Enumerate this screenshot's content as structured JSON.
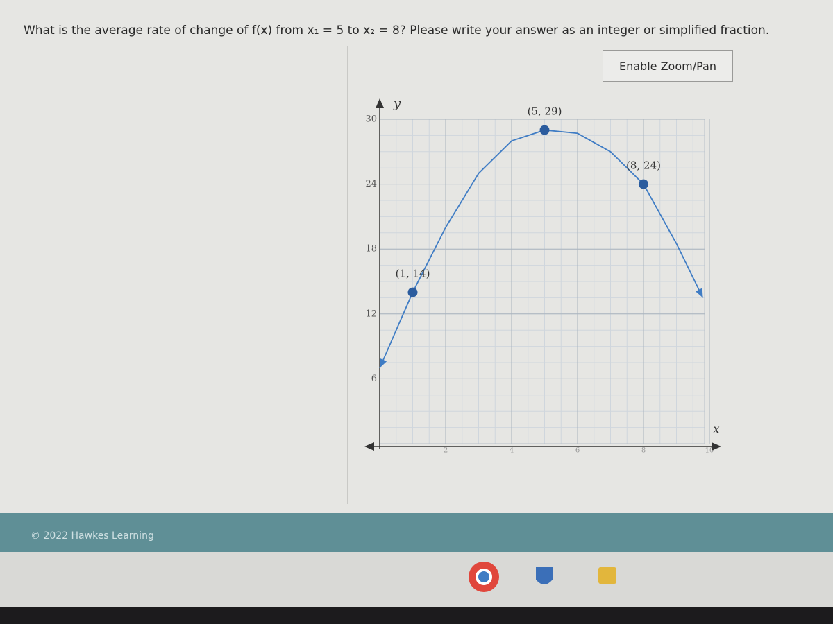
{
  "question": "What is the average rate of change of f(x) from x₁ = 5 to x₂ = 8? Please write your answer as an integer or simplified fraction.",
  "button": "Enable Zoom/Pan",
  "footer": "© 2022 Hawkes Learning",
  "chart_data": {
    "type": "line",
    "x_label": "x",
    "y_label": "y",
    "xlim": [
      0,
      10
    ],
    "ylim": [
      0,
      30
    ],
    "xticks": [
      2,
      4,
      6,
      8,
      10
    ],
    "yticks": [
      6,
      12,
      18,
      24,
      30
    ],
    "grid": true,
    "curve": {
      "color": "#3f7cc4",
      "x": [
        0,
        1,
        2,
        3,
        4,
        5,
        6,
        7,
        8,
        9,
        9.8
      ],
      "values": [
        7,
        14,
        20,
        25,
        28,
        29,
        28.7,
        27,
        24,
        18.5,
        13.5
      ]
    },
    "points": {
      "color": "#2b5c9e",
      "x": [
        1,
        5,
        8
      ],
      "values": [
        14,
        29,
        24
      ],
      "value_labels": [
        "(1, 14)",
        "(5, 29)",
        "(8, 24)"
      ]
    }
  }
}
